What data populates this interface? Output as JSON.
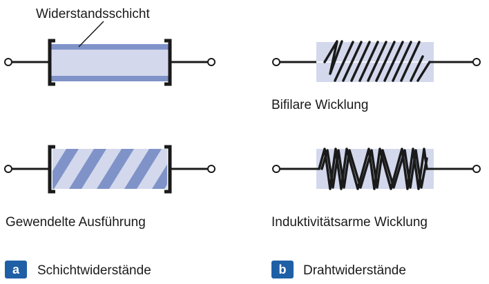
{
  "colors": {
    "line": "#1a1a1a",
    "film": "#7f93c9",
    "body_fill": "#d3d8ec",
    "badge": "#1f5fa6"
  },
  "labels": {
    "film_layer": "Widerstandsschicht",
    "spiral_version": "Gewendelte Ausführung",
    "bifilar": "Bifilare Wicklung",
    "low_inductance": "Induktivitätsarme Wicklung"
  },
  "captions": {
    "a": {
      "badge": "a",
      "text": "Schichtwiderstände"
    },
    "b": {
      "badge": "b",
      "text": "Drahtwiderstände"
    }
  }
}
